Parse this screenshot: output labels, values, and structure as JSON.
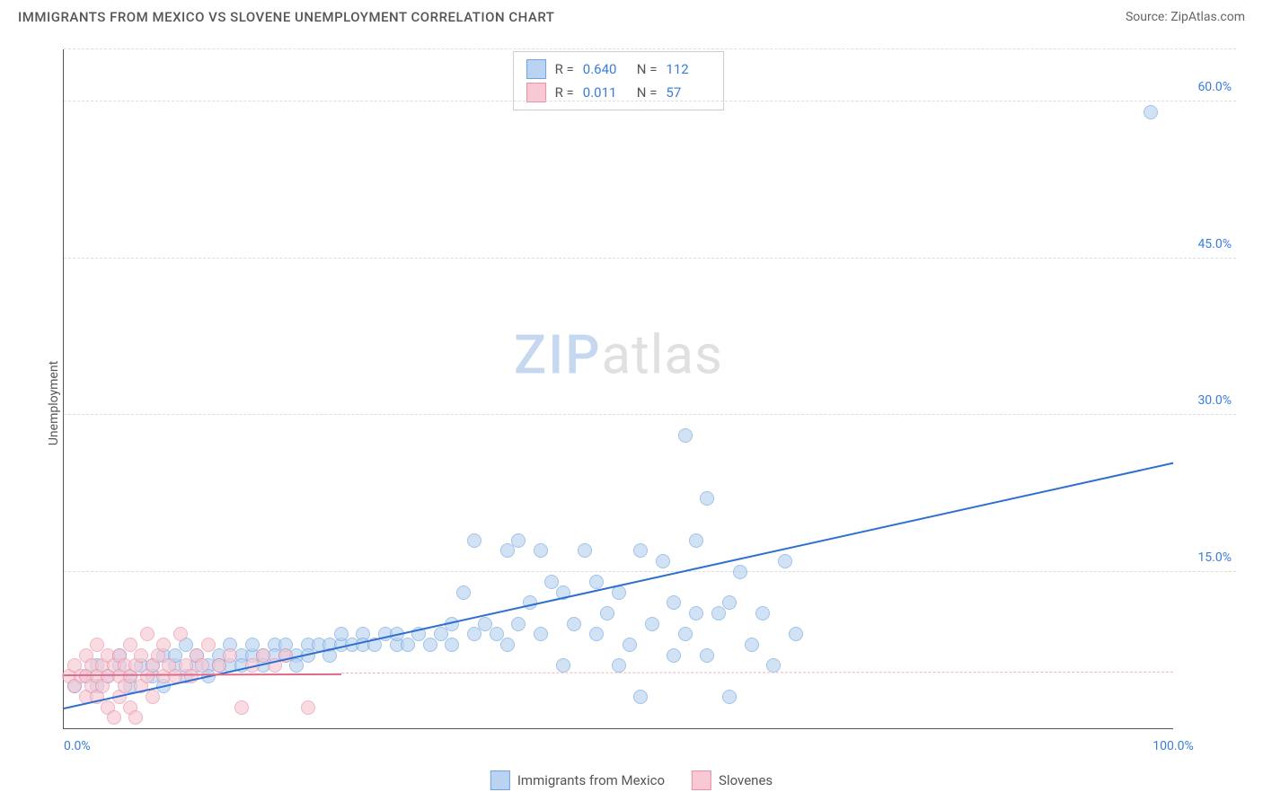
{
  "header": {
    "title": "IMMIGRANTS FROM MEXICO VS SLOVENE UNEMPLOYMENT CORRELATION CHART",
    "source_prefix": "Source: ",
    "source_name": "ZipAtlas.com"
  },
  "watermark": {
    "part1": "ZIP",
    "part2": "atlas"
  },
  "chart": {
    "type": "scatter",
    "y_axis_label": "Unemployment",
    "xlim": [
      0,
      100
    ],
    "ylim": [
      0,
      65
    ],
    "x_ticks": [
      {
        "value": 0,
        "label": "0.0%"
      },
      {
        "value": 100,
        "label": "100.0%"
      }
    ],
    "y_ticks": [
      {
        "value": 15,
        "label": "15.0%"
      },
      {
        "value": 30,
        "label": "30.0%"
      },
      {
        "value": 45,
        "label": "45.0%"
      },
      {
        "value": 60,
        "label": "60.0%"
      }
    ],
    "grid_color": "#dddddd",
    "axis_color": "#555555",
    "background_color": "#ffffff",
    "point_radius": 8,
    "point_border_width": 1.2,
    "series": [
      {
        "id": "mexico",
        "label": "Immigrants from Mexico",
        "fill_color": "#b9d3f0",
        "stroke_color": "#6fa3e0",
        "fill_opacity": 0.65,
        "r_value": "0.640",
        "n_value": "112",
        "trend": {
          "x1": 0,
          "y1": 2.0,
          "x2": 100,
          "y2": 25.5,
          "color": "#2f6fd0",
          "width": 2,
          "dashed": false
        },
        "points": [
          [
            1,
            4
          ],
          [
            2,
            5
          ],
          [
            3,
            6
          ],
          [
            3,
            4
          ],
          [
            4,
            5
          ],
          [
            5,
            6
          ],
          [
            5,
            7
          ],
          [
            6,
            5
          ],
          [
            6,
            4
          ],
          [
            7,
            6
          ],
          [
            8,
            6
          ],
          [
            8,
            5
          ],
          [
            9,
            7
          ],
          [
            9,
            4
          ],
          [
            10,
            6
          ],
          [
            10,
            7
          ],
          [
            11,
            5
          ],
          [
            11,
            8
          ],
          [
            12,
            6
          ],
          [
            12,
            7
          ],
          [
            13,
            6
          ],
          [
            13,
            5
          ],
          [
            14,
            7
          ],
          [
            14,
            6
          ],
          [
            15,
            8
          ],
          [
            15,
            6
          ],
          [
            16,
            7
          ],
          [
            16,
            6
          ],
          [
            17,
            7
          ],
          [
            17,
            8
          ],
          [
            18,
            7
          ],
          [
            18,
            6
          ],
          [
            19,
            8
          ],
          [
            19,
            7
          ],
          [
            20,
            7
          ],
          [
            20,
            8
          ],
          [
            21,
            7
          ],
          [
            21,
            6
          ],
          [
            22,
            8
          ],
          [
            22,
            7
          ],
          [
            23,
            8
          ],
          [
            24,
            8
          ],
          [
            24,
            7
          ],
          [
            25,
            8
          ],
          [
            25,
            9
          ],
          [
            26,
            8
          ],
          [
            27,
            9
          ],
          [
            27,
            8
          ],
          [
            28,
            8
          ],
          [
            29,
            9
          ],
          [
            30,
            8
          ],
          [
            30,
            9
          ],
          [
            31,
            8
          ],
          [
            32,
            9
          ],
          [
            33,
            8
          ],
          [
            34,
            9
          ],
          [
            35,
            10
          ],
          [
            35,
            8
          ],
          [
            36,
            13
          ],
          [
            37,
            9
          ],
          [
            37,
            18
          ],
          [
            38,
            10
          ],
          [
            39,
            9
          ],
          [
            40,
            8
          ],
          [
            40,
            17
          ],
          [
            41,
            10
          ],
          [
            41,
            18
          ],
          [
            42,
            12
          ],
          [
            43,
            9
          ],
          [
            43,
            17
          ],
          [
            44,
            14
          ],
          [
            45,
            6
          ],
          [
            45,
            13
          ],
          [
            46,
            10
          ],
          [
            47,
            17
          ],
          [
            48,
            9
          ],
          [
            48,
            14
          ],
          [
            49,
            11
          ],
          [
            50,
            6
          ],
          [
            50,
            13
          ],
          [
            51,
            8
          ],
          [
            52,
            17
          ],
          [
            52,
            3
          ],
          [
            53,
            10
          ],
          [
            54,
            16
          ],
          [
            55,
            7
          ],
          [
            55,
            12
          ],
          [
            56,
            28
          ],
          [
            56,
            9
          ],
          [
            57,
            11
          ],
          [
            57,
            18
          ],
          [
            58,
            7
          ],
          [
            58,
            22
          ],
          [
            59,
            11
          ],
          [
            60,
            12
          ],
          [
            60,
            3
          ],
          [
            61,
            15
          ],
          [
            62,
            8
          ],
          [
            63,
            11
          ],
          [
            64,
            6
          ],
          [
            65,
            16
          ],
          [
            66,
            9
          ],
          [
            98,
            59
          ]
        ]
      },
      {
        "id": "slovenes",
        "label": "Slovenes",
        "fill_color": "#f6c9d4",
        "stroke_color": "#e98fa8",
        "fill_opacity": 0.65,
        "r_value": "0.011",
        "n_value": "57",
        "trend": {
          "x1": 0,
          "y1": 5.2,
          "x2": 25,
          "y2": 5.3,
          "color": "#e06a8a",
          "width": 1.5,
          "dashed": false
        },
        "trend_extension": {
          "x1": 25,
          "y1": 5.3,
          "x2": 100,
          "y2": 5.4,
          "color": "#f0b0c0",
          "dashed": true
        },
        "points": [
          [
            0.5,
            5
          ],
          [
            1,
            6
          ],
          [
            1,
            4
          ],
          [
            1.5,
            5
          ],
          [
            2,
            7
          ],
          [
            2,
            3
          ],
          [
            2,
            5
          ],
          [
            2.5,
            6
          ],
          [
            2.5,
            4
          ],
          [
            3,
            5
          ],
          [
            3,
            8
          ],
          [
            3,
            3
          ],
          [
            3.5,
            6
          ],
          [
            3.5,
            4
          ],
          [
            4,
            7
          ],
          [
            4,
            2
          ],
          [
            4,
            5
          ],
          [
            4.5,
            6
          ],
          [
            4.5,
            1
          ],
          [
            5,
            5
          ],
          [
            5,
            7
          ],
          [
            5,
            3
          ],
          [
            5.5,
            6
          ],
          [
            5.5,
            4
          ],
          [
            6,
            2
          ],
          [
            6,
            8
          ],
          [
            6,
            5
          ],
          [
            6.5,
            6
          ],
          [
            6.5,
            1
          ],
          [
            7,
            7
          ],
          [
            7,
            4
          ],
          [
            7.5,
            9
          ],
          [
            7.5,
            5
          ],
          [
            8,
            3
          ],
          [
            8,
            6
          ],
          [
            8.5,
            7
          ],
          [
            9,
            5
          ],
          [
            9,
            8
          ],
          [
            9.5,
            6
          ],
          [
            10,
            5
          ],
          [
            10.5,
            9
          ],
          [
            11,
            6
          ],
          [
            11.5,
            5
          ],
          [
            12,
            7
          ],
          [
            12.5,
            6
          ],
          [
            13,
            8
          ],
          [
            14,
            6
          ],
          [
            15,
            7
          ],
          [
            16,
            2
          ],
          [
            17,
            6
          ],
          [
            18,
            7
          ],
          [
            19,
            6
          ],
          [
            20,
            7
          ],
          [
            22,
            2
          ]
        ]
      }
    ],
    "stats_legend": {
      "r_label": "R =",
      "n_label": "N ="
    }
  }
}
